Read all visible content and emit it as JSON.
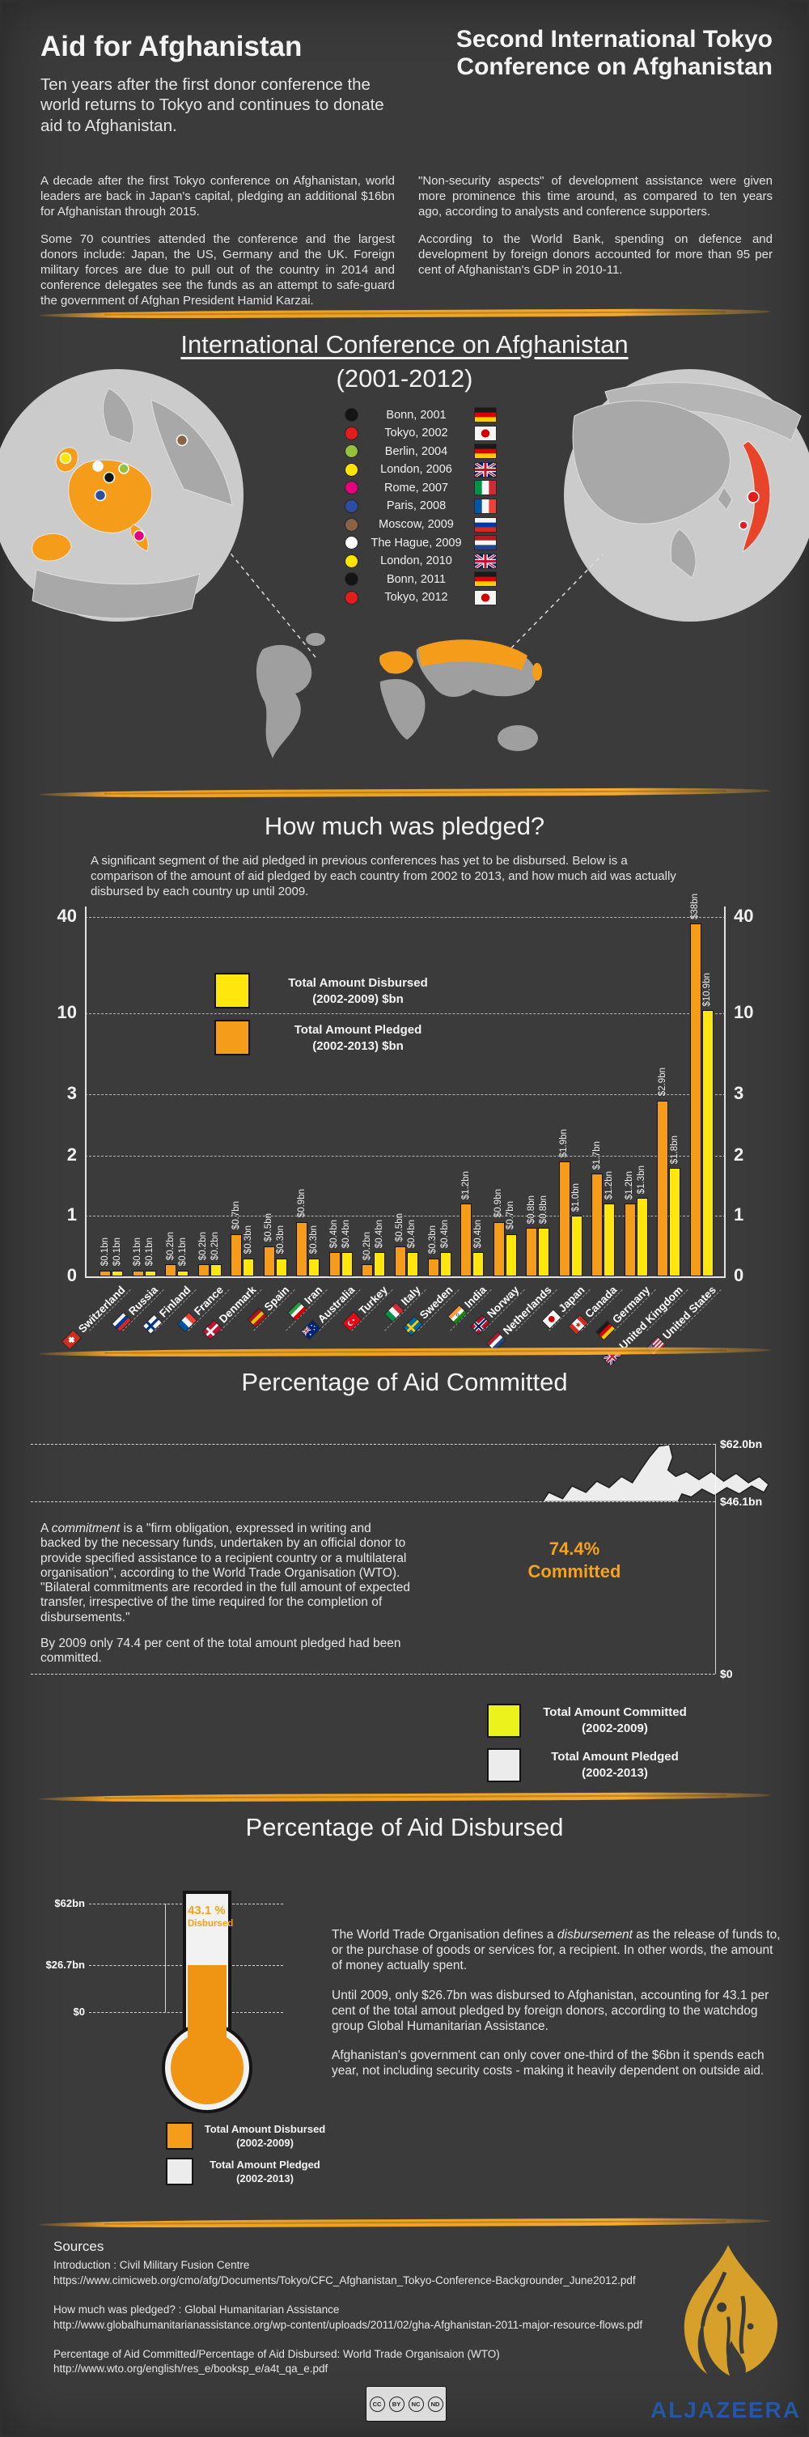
{
  "header": {
    "title": "Aid for Afghanistan",
    "subtitle": "Ten years after the first donor conference the world returns to Tokyo and continues to donate aid to Afghanistan.",
    "right_title": "Second International Tokyo Conference on Afghanistan"
  },
  "intro": {
    "col1_p1": "A decade after the first Tokyo conference on Afghanistan, world leaders are back in Japan's capital, pledging an additional $16bn for Afghanistan through 2015.",
    "col1_p2": "Some 70 countries attended the conference and the largest donors include: Japan, the US, Germany and the UK. Foreign military forces are due to pull out of the country in 2014 and conference delegates see the funds as an attempt to safe-guard the government of Afghan President Hamid Karzai.",
    "col2_p1": "\"Non-security aspects\" of development assistance were given more prominence this time around, as compared to ten years ago, according to analysts and conference supporters.",
    "col2_p2": "According to the World Bank, spending on defence and development by foreign donors accounted for more than 95 per cent of Afghanistan's GDP in 2010-11."
  },
  "map_section": {
    "title": "International Conference on Afghanistan",
    "subtitle": "(2001-2012)",
    "legend": [
      {
        "label": "Bonn, 2001",
        "dot": "#141414",
        "flag": "de"
      },
      {
        "label": "Tokyo, 2002",
        "dot": "#e31c1c",
        "flag": "jp"
      },
      {
        "label": "Berlin, 2004",
        "dot": "#96c13d",
        "flag": "de"
      },
      {
        "label": "London, 2006",
        "dot": "#ffe400",
        "flag": "uk"
      },
      {
        "label": "Rome, 2007",
        "dot": "#e6007e",
        "flag": "it"
      },
      {
        "label": "Paris, 2008",
        "dot": "#2d4ea0",
        "flag": "fr"
      },
      {
        "label": "Moscow, 2009",
        "dot": "#8a6246",
        "flag": "ru"
      },
      {
        "label": "The Hague, 2009",
        "dot": "#ffffff",
        "flag": "nl"
      },
      {
        "label": "London, 2010",
        "dot": "#ffe400",
        "flag": "uk"
      },
      {
        "label": "Bonn, 2011",
        "dot": "#141414",
        "flag": "de"
      },
      {
        "label": "Tokyo, 2012",
        "dot": "#e31c1c",
        "flag": "jp"
      }
    ]
  },
  "pledged_section": {
    "title": "How much was pledged?",
    "intro": "A significant segment of the aid pledged in previous conferences has yet to be disbursed. Below is a comparison of the amount of aid pledged by each country from 2002 to 2013, and how much aid was actually disbursed by each country up until 2009.",
    "legend": [
      {
        "label": "Total Amount Disbursed\n(2002-2009) $bn",
        "color": "#ffe60d"
      },
      {
        "label": "Total Amount Pledged\n(2002-2013) $bn",
        "color": "#f59c1a"
      }
    ]
  },
  "chart_data": [
    {
      "type": "bar",
      "title": "How much was pledged?",
      "categories": [
        "Switzerland",
        "Russia",
        "Finland",
        "France",
        "Denmark",
        "Spain",
        "Iran",
        "Australia",
        "Turkey",
        "Italy",
        "Sweden",
        "India",
        "Norway",
        "Netherlands",
        "Japan",
        "Canada",
        "Germany",
        "United Kingdom",
        "United States"
      ],
      "flags": [
        "ch",
        "ru",
        "fi",
        "fr",
        "dk",
        "es",
        "ir",
        "au",
        "tr",
        "it",
        "se",
        "in",
        "no",
        "nl",
        "jp",
        "ca",
        "de",
        "uk",
        "us"
      ],
      "series": [
        {
          "name": "Total Amount Pledged (2002-2013) $bn",
          "color": "#f59c1a",
          "values": [
            0.1,
            0.1,
            0.2,
            0.2,
            0.7,
            0.5,
            0.9,
            0.4,
            0.2,
            0.5,
            0.3,
            1.2,
            0.9,
            0.8,
            1.9,
            1.7,
            1.2,
            2.9,
            38
          ],
          "labels": [
            "$0.1bn",
            "$0.1bn",
            "$0.2bn",
            "$0.2bn",
            "$0.7bn",
            "$0.5bn",
            "$0.9bn",
            "$0.4bn",
            "$0.2bn",
            "$0.5bn",
            "$0.3bn",
            "$1.2bn",
            "$0.9bn",
            "$0.8bn",
            "$1.9bn",
            "$1.7bn",
            "$1.2bn",
            "$2.9bn",
            "$38bn"
          ]
        },
        {
          "name": "Total Amount Disbursed (2002-2009) $bn",
          "color": "#ffe60d",
          "values": [
            0.1,
            0.1,
            0.1,
            0.2,
            0.3,
            0.3,
            0.3,
            0.4,
            0.4,
            0.4,
            0.4,
            0.4,
            0.7,
            0.8,
            1.0,
            1.2,
            1.3,
            1.8,
            10.9
          ],
          "labels": [
            "$0.1bn",
            "$0.1bn",
            "$0.1bn",
            "$0.2bn",
            "$0.3bn",
            "$0.3bn",
            "$0.3bn",
            "$0.4bn",
            "$0.4bn",
            "$0.4bn",
            "$0.4bn",
            "$0.4bn",
            "$0.7bn",
            "$0.8bn",
            "$1.0bn",
            "$1.2bn",
            "$1.3bn",
            "$1.8bn",
            "$10.9bn"
          ]
        }
      ],
      "y_ticks": [
        40,
        10,
        3,
        2,
        1,
        0
      ],
      "ylabel": "",
      "xlabel": "",
      "grid": "dashed",
      "legend_position": "top-left"
    },
    {
      "type": "area",
      "shape": "afghanistan-map",
      "title": "Percentage of Aid Committed",
      "total_pledged_bn": 62.0,
      "committed_bn": 46.1,
      "committed_pct": 74.4,
      "axis_labels": [
        "$62.0bn",
        "$46.1bn",
        "$0"
      ]
    },
    {
      "type": "area",
      "shape": "thermometer",
      "title": "Percentage of Aid Disbursed",
      "total_pledged_bn": 62,
      "disbursed_bn": 26.7,
      "disbursed_pct": 43.1,
      "axis_labels": [
        "$62bn",
        "$26.7bn",
        "$0"
      ]
    }
  ],
  "committed_section": {
    "title": "Percentage of Aid Committed",
    "p1_pre": "A ",
    "p1_italic": "commitment",
    "p1_rest": " is a \"firm obligation, expressed in writing and backed by the necessary funds, undertaken by an official donor to provide specified assistance to a recipient country or a multilateral organisation\", according to the World Trade Organisation (WTO). \"Bilateral commitments are recorded in the full amount of expected transfer, irrespective of the time required for the completion of disbursements.\"",
    "p2": "By 2009 only 74.4 per cent of the total amount pledged had been committed.",
    "label_top": "$62.0bn",
    "label_mid": "$46.1bn",
    "label_zero": "$0",
    "center_pct": "74.4%",
    "center_word": "Committed",
    "legend": [
      {
        "label": "Total Amount Committed\n(2002-2009)",
        "color": "#ecf21b"
      },
      {
        "label": "Total Amount Pledged\n(2002-2013)",
        "color": "#ececec"
      }
    ]
  },
  "disbursed_section": {
    "title": "Percentage of Aid Disbursed",
    "p1_pre": "The World Trade Organisation defines a ",
    "p1_italic": "disbursement",
    "p1_rest": " as the release of funds to, or the purchase of goods or services for, a recipient. In other words, the amount of money actually spent.",
    "p2": "Until 2009, only $26.7bn was disbursed to Afghanistan, accounting for 43.1 per cent of the total amout pledged by foreign donors, according to the watchdog group Global Humanitarian Assistance.",
    "p3": "Afghanistan's government can only cover one-third of the $6bn it spends each year, not including security costs - making it heavily dependent on outside aid.",
    "label_top": "$62bn",
    "label_mid": "$26.7bn",
    "label_zero": "$0",
    "pct": "43.1 %",
    "pct_word": "Disbursed",
    "legend": [
      {
        "label": "Total Amount Disbursed\n(2002-2009)",
        "color": "#f59c1a"
      },
      {
        "label": "Total Amount Pledged\n(2002-2013)",
        "color": "#ececec"
      }
    ]
  },
  "sources": {
    "heading": "Sources",
    "items": [
      {
        "label": "Introduction : Civil Military Fusion  Centre",
        "url": "https://www.cimicweb.org/cmo/afg/Documents/Tokyo/CFC_Afghanistan_Tokyo-Conference-Backgrounder_June2012.pdf"
      },
      {
        "label": "How much was pledged? : Global Humanitarian Assistance",
        "url": "http://www.globalhumanitarianassistance.org/wp-content/uploads/2011/02/gha-Afghanistan-2011-major-resource-flows.pdf"
      },
      {
        "label": "Percentage of Aid Committed/Percentage of Aid Disbursed: World Trade Organisaion (WTO)",
        "url": "http://www.wto.org/english/res_e/booksp_e/a4t_qa_e.pdf"
      }
    ]
  },
  "footer": {
    "brand": "ALJAZEERA",
    "cc_icons": [
      "CC",
      "BY",
      "NC",
      "ND"
    ]
  },
  "colors": {
    "background": "#3b3b3b",
    "accent_orange": "#f0a229",
    "bar_orange": "#f59c1a",
    "bar_yellow": "#ffe60d",
    "map_yellow": "#ecf21b",
    "pledged_white": "#ececec",
    "aj_gold": "#d7a02a",
    "aj_blue": "#2457a7"
  }
}
